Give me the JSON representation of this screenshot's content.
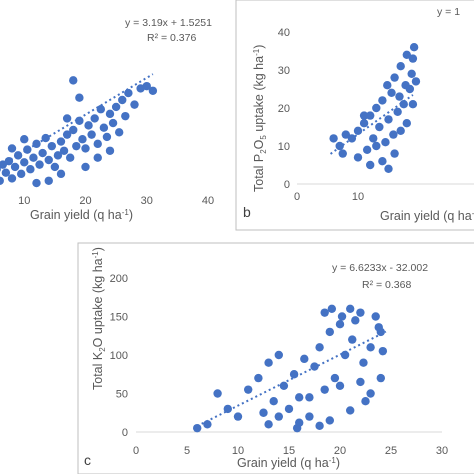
{
  "chart_data": [
    {
      "panel": "",
      "type": "scatter",
      "equation": "y = 3.19x + 1.5251",
      "r2": "R² = 0.376",
      "xlabel_text": "Grain yield (q ha",
      "xlabel_sup": "-1",
      "xlabel_end": ")",
      "ylabel": "",
      "xlim": [
        0,
        40
      ],
      "ylim": [
        0,
        130
      ],
      "xticks": [
        "10",
        "20",
        "30",
        "40"
      ],
      "yticks": [],
      "trend": {
        "slope": 3.19,
        "intercept": 1.5251,
        "x_range": [
          5,
          31
        ]
      },
      "marker_color": "#4472c4",
      "points": [
        [
          5,
          12
        ],
        [
          5.5,
          18
        ],
        [
          6,
          8
        ],
        [
          6.5,
          22
        ],
        [
          7,
          15
        ],
        [
          7.5,
          25
        ],
        [
          8,
          10
        ],
        [
          8.5,
          20
        ],
        [
          9,
          30
        ],
        [
          9.5,
          14
        ],
        [
          10,
          24
        ],
        [
          10.5,
          35
        ],
        [
          11,
          18
        ],
        [
          11.5,
          28
        ],
        [
          12,
          40
        ],
        [
          12.5,
          22
        ],
        [
          13,
          32
        ],
        [
          13.5,
          45
        ],
        [
          14,
          26
        ],
        [
          14.5,
          38
        ],
        [
          15,
          20
        ],
        [
          15.5,
          30
        ],
        [
          16,
          42
        ],
        [
          16.5,
          34
        ],
        [
          17,
          48
        ],
        [
          17.5,
          28
        ],
        [
          18,
          52
        ],
        [
          18.5,
          38
        ],
        [
          19,
          60
        ],
        [
          19.5,
          44
        ],
        [
          20,
          36
        ],
        [
          20.5,
          56
        ],
        [
          21,
          48
        ],
        [
          21.5,
          62
        ],
        [
          22,
          40
        ],
        [
          22.5,
          70
        ],
        [
          23,
          54
        ],
        [
          23.5,
          46
        ],
        [
          24,
          66
        ],
        [
          24.5,
          58
        ],
        [
          25,
          72
        ],
        [
          25.5,
          50
        ],
        [
          26,
          78
        ],
        [
          26.5,
          64
        ],
        [
          27,
          84
        ],
        [
          28,
          74
        ],
        [
          29,
          88
        ],
        [
          30,
          90
        ],
        [
          31,
          86
        ],
        [
          18,
          95
        ],
        [
          19,
          80
        ],
        [
          14,
          8
        ],
        [
          12,
          6
        ],
        [
          16,
          14
        ],
        [
          20,
          20
        ],
        [
          22,
          28
        ],
        [
          24,
          34
        ],
        [
          10,
          44
        ],
        [
          8,
          36
        ],
        [
          17,
          62
        ]
      ]
    },
    {
      "panel": "b",
      "type": "scatter",
      "equation": "y = 1",
      "ylabel_text": "Total P",
      "ylabel_sub1": "2",
      "ylabel_mid": "O",
      "ylabel_sub2": "5",
      "ylabel_end": " uptake (kg ha",
      "ylabel_sup": "-1",
      "ylabel_close": ")",
      "xlabel_text": "Grain yield (q ha",
      "xlabel_sup": "-1",
      "xlabel_end": "",
      "xlim": [
        0,
        20
      ],
      "ylim": [
        0,
        40
      ],
      "xticks": [
        "0",
        "10"
      ],
      "yticks": [
        "0",
        "10",
        "20",
        "30",
        "40"
      ],
      "trend": {
        "slope": 1.15,
        "intercept": 1.6,
        "x_range": [
          5.5,
          19
        ]
      },
      "marker_color": "#4472c4",
      "points": [
        [
          6,
          12
        ],
        [
          7,
          10
        ],
        [
          7.5,
          8
        ],
        [
          8,
          13
        ],
        [
          9,
          12
        ],
        [
          10,
          14
        ],
        [
          11,
          16
        ],
        [
          11.5,
          9
        ],
        [
          12,
          18
        ],
        [
          12.5,
          12
        ],
        [
          13,
          20
        ],
        [
          13.5,
          15
        ],
        [
          14,
          22
        ],
        [
          14.5,
          11
        ],
        [
          14.8,
          26
        ],
        [
          15,
          17
        ],
        [
          15.5,
          24
        ],
        [
          15.8,
          13
        ],
        [
          16,
          28
        ],
        [
          16.5,
          19
        ],
        [
          16.8,
          23
        ],
        [
          17,
          31
        ],
        [
          17.5,
          21
        ],
        [
          17.8,
          26
        ],
        [
          18,
          34
        ],
        [
          18.5,
          25
        ],
        [
          18.8,
          29
        ],
        [
          19,
          33
        ],
        [
          19.2,
          36
        ],
        [
          19.5,
          27
        ],
        [
          13,
          10
        ],
        [
          14,
          6
        ],
        [
          15,
          4
        ],
        [
          16,
          8
        ],
        [
          17,
          14
        ],
        [
          12,
          5
        ],
        [
          11,
          18
        ],
        [
          10,
          7
        ],
        [
          18,
          16
        ],
        [
          19,
          21
        ]
      ]
    },
    {
      "panel": "c",
      "type": "scatter",
      "equation": "y = 6.6233x - 32.002",
      "r2": "R² = 0.368",
      "ylabel_text": "Total K",
      "ylabel_sub1": "2",
      "ylabel_end": "O uptake (kg ha",
      "ylabel_sup": "-1",
      "ylabel_close": ")",
      "xlabel_text": "Grain yield (q ha",
      "xlabel_sup": "-1",
      "xlabel_end": ")",
      "xlim": [
        0,
        30
      ],
      "ylim": [
        0,
        200
      ],
      "xticks": [
        "0",
        "5",
        "10",
        "15",
        "20",
        "25",
        "30"
      ],
      "yticks": [
        "0",
        "50",
        "100",
        "150",
        "200"
      ],
      "trend": {
        "slope": 6.6233,
        "intercept": -32.002,
        "x_range": [
          6,
          24.5
        ]
      },
      "marker_color": "#4472c4",
      "points": [
        [
          6,
          5
        ],
        [
          7,
          10
        ],
        [
          8,
          50
        ],
        [
          9,
          30
        ],
        [
          10,
          20
        ],
        [
          11,
          55
        ],
        [
          12,
          70
        ],
        [
          12.5,
          25
        ],
        [
          13,
          90
        ],
        [
          13.5,
          40
        ],
        [
          14,
          20
        ],
        [
          14.5,
          60
        ],
        [
          15,
          30
        ],
        [
          15.5,
          75
        ],
        [
          16,
          45
        ],
        [
          16.5,
          95
        ],
        [
          17,
          20
        ],
        [
          17.5,
          85
        ],
        [
          18,
          110
        ],
        [
          18.5,
          55
        ],
        [
          19,
          130
        ],
        [
          19.2,
          160
        ],
        [
          19.5,
          70
        ],
        [
          20,
          140
        ],
        [
          20.2,
          150
        ],
        [
          20.5,
          100
        ],
        [
          21,
          160
        ],
        [
          21.2,
          120
        ],
        [
          21.5,
          145
        ],
        [
          22,
          155
        ],
        [
          22.3,
          90
        ],
        [
          22.5,
          40
        ],
        [
          23,
          110
        ],
        [
          23.5,
          150
        ],
        [
          24,
          130
        ],
        [
          24.2,
          105
        ],
        [
          13,
          10
        ],
        [
          15.8,
          5
        ],
        [
          16,
          12
        ],
        [
          18,
          8
        ],
        [
          19,
          15
        ],
        [
          21,
          28
        ],
        [
          23,
          50
        ],
        [
          24,
          70
        ],
        [
          17,
          45
        ],
        [
          14,
          100
        ],
        [
          20,
          60
        ],
        [
          22,
          65
        ],
        [
          18.5,
          155
        ],
        [
          23.8,
          136
        ]
      ]
    }
  ]
}
